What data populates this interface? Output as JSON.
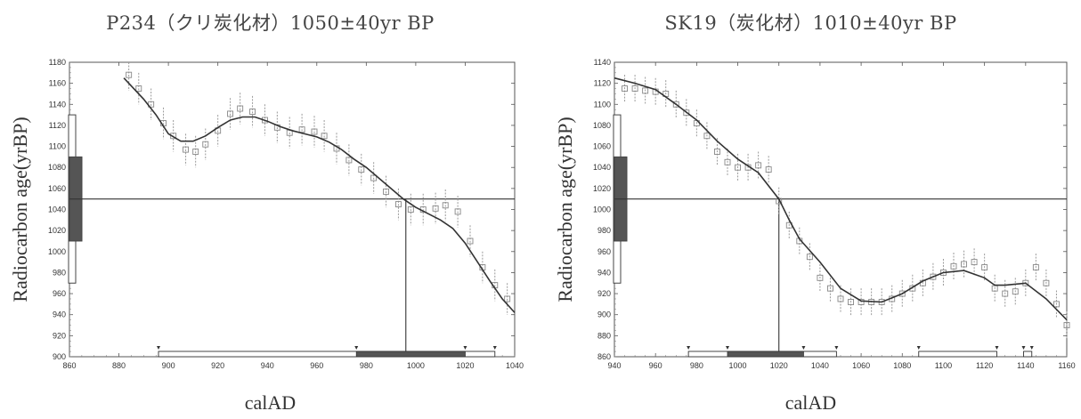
{
  "chart_data": [
    {
      "type": "line",
      "title": "P234（クリ炭化材）1050±40yr BP",
      "xlabel": "calAD",
      "ylabel": "Radiocarbon age(yrBP)",
      "xlim": [
        860,
        1040
      ],
      "ylim": [
        900,
        1180
      ],
      "xticks": [
        860,
        880,
        900,
        920,
        940,
        960,
        980,
        1000,
        1020,
        1040
      ],
      "yticks": [
        900,
        920,
        940,
        960,
        980,
        1000,
        1020,
        1040,
        1060,
        1080,
        1100,
        1120,
        1140,
        1160,
        1180
      ],
      "measurement": {
        "age": 1050,
        "error": 40,
        "sigma1": [
          1010,
          1090
        ],
        "sigma2": [
          970,
          1130
        ]
      },
      "intercept_x": 996,
      "series": [
        {
          "kind": "curve",
          "x": [
            882,
            890,
            895,
            900,
            905,
            910,
            915,
            920,
            925,
            930,
            935,
            940,
            945,
            950,
            955,
            960,
            965,
            970,
            975,
            980,
            985,
            990,
            995,
            1000,
            1005,
            1010,
            1015,
            1020,
            1025,
            1030,
            1035,
            1040
          ],
          "y": [
            1165,
            1145,
            1130,
            1112,
            1105,
            1105,
            1110,
            1118,
            1125,
            1128,
            1128,
            1124,
            1119,
            1115,
            1112,
            1109,
            1104,
            1097,
            1088,
            1080,
            1070,
            1060,
            1050,
            1042,
            1036,
            1030,
            1022,
            1008,
            990,
            972,
            955,
            942
          ]
        },
        {
          "kind": "points",
          "x": [
            884,
            888,
            893,
            898,
            902,
            907,
            911,
            915,
            920,
            925,
            929,
            934,
            939,
            944,
            949,
            954,
            959,
            963,
            968,
            973,
            978,
            983,
            988,
            993,
            998,
            1003,
            1008,
            1012,
            1017,
            1022,
            1027,
            1032,
            1037
          ],
          "y": [
            1168,
            1155,
            1140,
            1122,
            1110,
            1097,
            1095,
            1102,
            1115,
            1131,
            1136,
            1133,
            1125,
            1118,
            1113,
            1116,
            1114,
            1110,
            1098,
            1087,
            1078,
            1070,
            1057,
            1045,
            1040,
            1040,
            1041,
            1044,
            1038,
            1010,
            985,
            968,
            955
          ],
          "err": 15
        }
      ],
      "ranges": [
        {
          "kind": "2sigma",
          "from": 896,
          "to": 1032
        },
        {
          "kind": "1sigma",
          "from": 976,
          "to": 1020
        }
      ]
    },
    {
      "type": "line",
      "title": "SK19（炭化材）1010±40yr BP",
      "xlabel": "calAD",
      "ylabel": "Radiocarbon age(yrBP)",
      "xlim": [
        940,
        1160
      ],
      "ylim": [
        860,
        1140
      ],
      "xticks": [
        940,
        960,
        980,
        1000,
        1020,
        1040,
        1060,
        1080,
        1100,
        1120,
        1140,
        1160
      ],
      "yticks": [
        860,
        880,
        900,
        920,
        940,
        960,
        980,
        1000,
        1020,
        1040,
        1060,
        1080,
        1100,
        1120,
        1140
      ],
      "measurement": {
        "age": 1010,
        "error": 40,
        "sigma1": [
          970,
          1050
        ],
        "sigma2": [
          930,
          1090
        ]
      },
      "intercept_x": 1020,
      "series": [
        {
          "kind": "curve",
          "x": [
            940,
            950,
            960,
            970,
            980,
            990,
            1000,
            1010,
            1020,
            1025,
            1030,
            1040,
            1050,
            1060,
            1070,
            1080,
            1090,
            1100,
            1110,
            1120,
            1125,
            1130,
            1140,
            1150,
            1160
          ],
          "y": [
            1125,
            1120,
            1114,
            1100,
            1085,
            1065,
            1048,
            1035,
            1010,
            990,
            972,
            950,
            925,
            913,
            912,
            920,
            932,
            940,
            942,
            935,
            928,
            928,
            930,
            915,
            895
          ]
        },
        {
          "kind": "points",
          "x": [
            945,
            950,
            955,
            960,
            965,
            970,
            975,
            980,
            985,
            990,
            995,
            1000,
            1005,
            1010,
            1015,
            1020,
            1025,
            1030,
            1035,
            1040,
            1045,
            1050,
            1055,
            1060,
            1065,
            1070,
            1075,
            1080,
            1085,
            1090,
            1095,
            1100,
            1105,
            1110,
            1115,
            1120,
            1125,
            1130,
            1135,
            1140,
            1145,
            1150,
            1155,
            1160
          ],
          "y": [
            1115,
            1115,
            1113,
            1112,
            1110,
            1100,
            1092,
            1082,
            1070,
            1055,
            1045,
            1040,
            1040,
            1042,
            1038,
            1008,
            985,
            970,
            955,
            935,
            925,
            915,
            912,
            912,
            912,
            912,
            915,
            920,
            925,
            930,
            936,
            940,
            946,
            948,
            950,
            945,
            925,
            920,
            922,
            930,
            945,
            930,
            910,
            890
          ],
          "err": 13
        }
      ],
      "ranges": [
        {
          "kind": "2sigma",
          "from": 976,
          "to": 1048
        },
        {
          "kind": "1sigma",
          "from": 995,
          "to": 1032
        },
        {
          "kind": "2sigma",
          "from": 1088,
          "to": 1126
        },
        {
          "kind": "2sigma",
          "from": 1139,
          "to": 1143
        }
      ]
    }
  ]
}
